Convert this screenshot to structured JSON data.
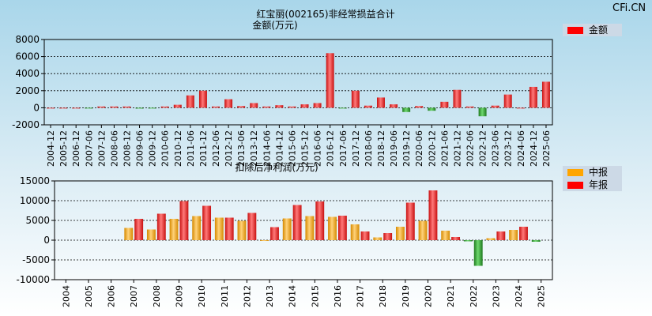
{
  "watermark": "CFi.CN",
  "chart_data": [
    {
      "type": "bar",
      "title": "红宝丽(002165)非经常损益合计",
      "ylabel": "金额(万元)",
      "ylim": [
        -2000,
        8000
      ],
      "yticks": [
        "8000",
        "6000",
        "4000",
        "2000",
        "0",
        "-2000"
      ],
      "grid": true,
      "legend": {
        "placement": "top-right",
        "entries": [
          {
            "label": "金额",
            "color": "#ff0000"
          }
        ]
      },
      "categories": [
        "2004-12",
        "2005-12",
        "2006-12",
        "2007-06",
        "2007-12",
        "2008-06",
        "2008-12",
        "2009-06",
        "2009-12",
        "2010-06",
        "2010-12",
        "2011-06",
        "2011-12",
        "2012-06",
        "2012-12",
        "2013-06",
        "2013-12",
        "2014-06",
        "2014-12",
        "2015-06",
        "2015-12",
        "2016-06",
        "2016-12",
        "2017-06",
        "2017-12",
        "2018-06",
        "2018-12",
        "2019-06",
        "2019-12",
        "2020-06",
        "2020-12",
        "2021-06",
        "2021-12",
        "2022-06",
        "2022-12",
        "2023-06",
        "2023-12",
        "2024-06",
        "2024-12",
        "2025-06"
      ],
      "values": [
        0,
        0,
        0,
        -50,
        150,
        150,
        150,
        -100,
        -50,
        150,
        350,
        1450,
        2000,
        150,
        1000,
        200,
        550,
        150,
        300,
        150,
        400,
        550,
        6400,
        -50,
        2000,
        250,
        1200,
        400,
        -500,
        200,
        -350,
        700,
        2100,
        150,
        -1000,
        250,
        1550,
        0,
        2450,
        3050
      ]
    },
    {
      "type": "bar",
      "title": "扣除后净利润(万元)",
      "ylim": [
        -10000,
        15000
      ],
      "yticks": [
        "15000",
        "10000",
        "5000",
        "0",
        "-5000",
        "-10000"
      ],
      "grid": true,
      "legend": {
        "placement": "top-right",
        "entries": [
          {
            "label": "中报",
            "color": "#ffa500"
          },
          {
            "label": "年报",
            "color": "#ff0000"
          }
        ]
      },
      "categories": [
        "2004",
        "2005",
        "2006",
        "2007",
        "2008",
        "2009",
        "2010",
        "2011",
        "2012",
        "2013",
        "2014",
        "2015",
        "2016",
        "2017",
        "2018",
        "2019",
        "2020",
        "2021",
        "2022",
        "2023",
        "2024",
        "2025"
      ],
      "series": [
        {
          "name": "中报",
          "values": [
            null,
            null,
            null,
            3100,
            2700,
            5400,
            6100,
            5700,
            4900,
            0,
            5500,
            6100,
            5900,
            4000,
            700,
            3400,
            4900,
            2400,
            -300,
            500,
            2600,
            -400
          ]
        },
        {
          "name": "年报",
          "values": [
            null,
            null,
            null,
            5400,
            6700,
            9900,
            8700,
            5700,
            6900,
            3300,
            8900,
            9800,
            6200,
            2200,
            1800,
            9500,
            12600,
            800,
            -6500,
            2200,
            3400,
            null
          ]
        }
      ]
    }
  ]
}
